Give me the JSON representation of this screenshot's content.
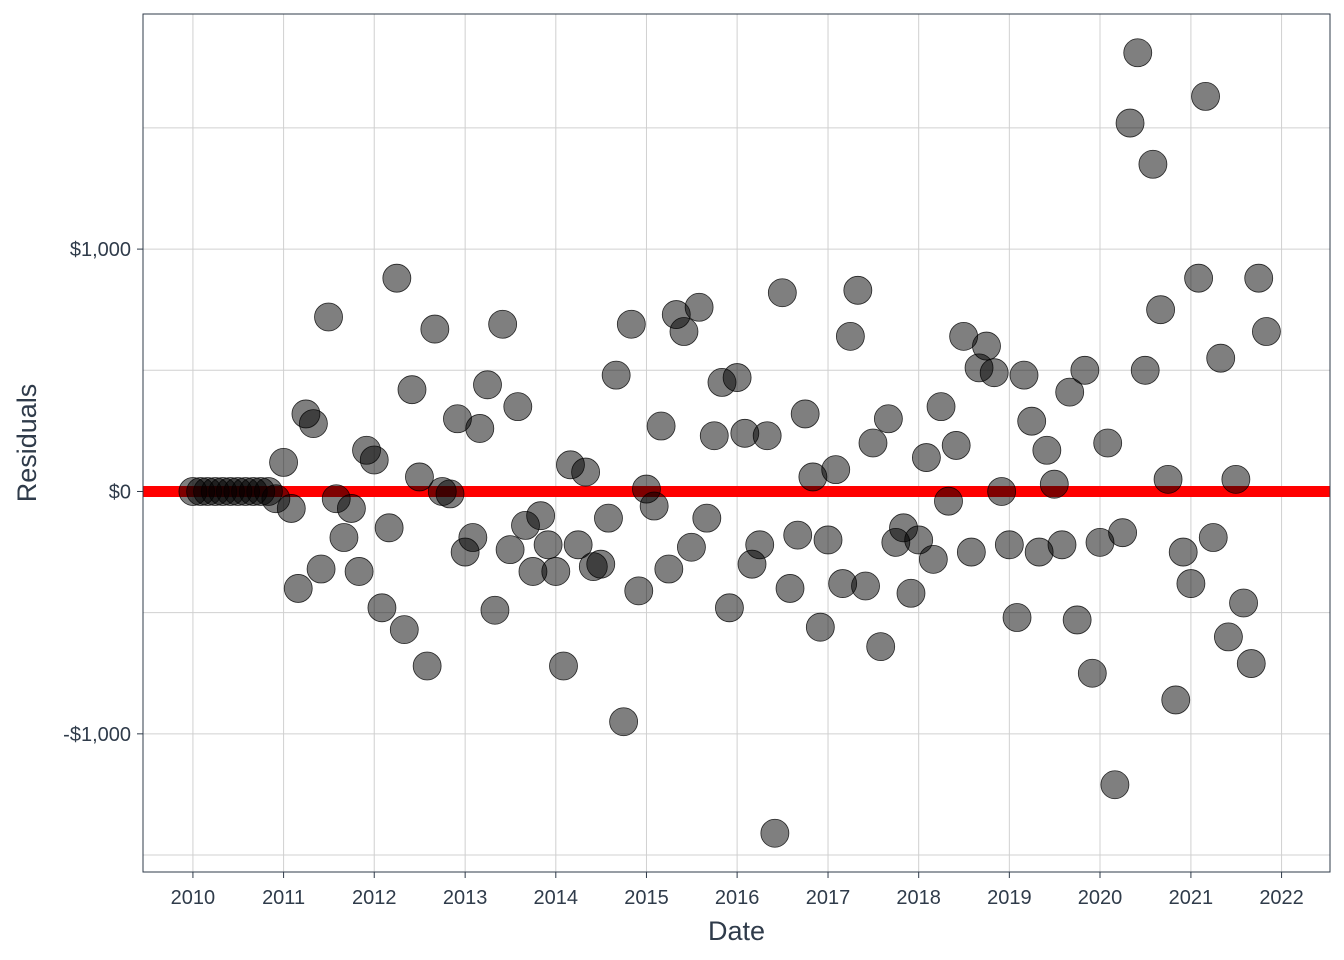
{
  "chart_data": {
    "type": "scatter",
    "xlabel": "Date",
    "ylabel": "Residuals",
    "xlim": [
      "2009-06-14",
      "2022-07-15"
    ],
    "ylim": [
      -1570,
      1970
    ],
    "x_ticks": [
      "2010",
      "2011",
      "2012",
      "2013",
      "2014",
      "2015",
      "2016",
      "2017",
      "2018",
      "2019",
      "2020",
      "2021",
      "2022"
    ],
    "y_ticks": [
      {
        "value": -1000,
        "label": "-$1,000"
      },
      {
        "value": 0,
        "label": "$0"
      },
      {
        "value": 1000,
        "label": "$1,000"
      }
    ],
    "y_minor_gridlines": [
      -1500,
      -500,
      500,
      1500
    ],
    "x_minor_gridlines": false,
    "grid": true,
    "reference_line": {
      "y": 0,
      "color": "#ff0000"
    },
    "point_color": "#000000",
    "point_opacity": 0.5,
    "points": [
      [
        "2010-01-01",
        0
      ],
      [
        "2010-02-01",
        0
      ],
      [
        "2010-03-01",
        0
      ],
      [
        "2010-04-01",
        0
      ],
      [
        "2010-05-01",
        0
      ],
      [
        "2010-06-01",
        0
      ],
      [
        "2010-07-01",
        0
      ],
      [
        "2010-08-01",
        0
      ],
      [
        "2010-09-01",
        0
      ],
      [
        "2010-10-01",
        0
      ],
      [
        "2010-11-01",
        0
      ],
      [
        "2010-12-01",
        -30
      ],
      [
        "2011-01-01",
        120
      ],
      [
        "2011-02-01",
        -70
      ],
      [
        "2011-03-01",
        -400
      ],
      [
        "2011-04-01",
        320
      ],
      [
        "2011-05-01",
        280
      ],
      [
        "2011-06-01",
        -320
      ],
      [
        "2011-07-01",
        720
      ],
      [
        "2011-08-01",
        -30
      ],
      [
        "2011-09-01",
        -190
      ],
      [
        "2011-10-01",
        -70
      ],
      [
        "2011-11-01",
        -330
      ],
      [
        "2011-12-01",
        170
      ],
      [
        "2012-01-01",
        130
      ],
      [
        "2012-02-01",
        -480
      ],
      [
        "2012-03-01",
        -150
      ],
      [
        "2012-04-01",
        880
      ],
      [
        "2012-05-01",
        -570
      ],
      [
        "2012-06-01",
        420
      ],
      [
        "2012-07-01",
        60
      ],
      [
        "2012-08-01",
        -720
      ],
      [
        "2012-09-01",
        670
      ],
      [
        "2012-10-01",
        0
      ],
      [
        "2012-11-01",
        -10
      ],
      [
        "2012-12-01",
        300
      ],
      [
        "2013-01-01",
        -250
      ],
      [
        "2013-02-01",
        -190
      ],
      [
        "2013-03-01",
        260
      ],
      [
        "2013-04-01",
        440
      ],
      [
        "2013-05-01",
        -490
      ],
      [
        "2013-06-01",
        690
      ],
      [
        "2013-07-01",
        -240
      ],
      [
        "2013-08-01",
        350
      ],
      [
        "2013-09-01",
        -140
      ],
      [
        "2013-10-01",
        -330
      ],
      [
        "2013-11-01",
        -100
      ],
      [
        "2013-12-01",
        -220
      ],
      [
        "2014-01-01",
        -330
      ],
      [
        "2014-02-01",
        -720
      ],
      [
        "2014-03-01",
        110
      ],
      [
        "2014-04-01",
        -220
      ],
      [
        "2014-05-01",
        80
      ],
      [
        "2014-06-01",
        -310
      ],
      [
        "2014-07-01",
        -300
      ],
      [
        "2014-08-01",
        -110
      ],
      [
        "2014-09-01",
        480
      ],
      [
        "2014-10-01",
        -950
      ],
      [
        "2014-11-01",
        690
      ],
      [
        "2014-12-01",
        -410
      ],
      [
        "2015-01-01",
        10
      ],
      [
        "2015-02-01",
        -60
      ],
      [
        "2015-03-01",
        270
      ],
      [
        "2015-04-01",
        -320
      ],
      [
        "2015-05-01",
        730
      ],
      [
        "2015-06-01",
        660
      ],
      [
        "2015-07-01",
        -230
      ],
      [
        "2015-08-01",
        760
      ],
      [
        "2015-09-01",
        -110
      ],
      [
        "2015-10-01",
        230
      ],
      [
        "2015-11-01",
        450
      ],
      [
        "2015-12-01",
        -480
      ],
      [
        "2016-01-01",
        470
      ],
      [
        "2016-02-01",
        240
      ],
      [
        "2016-03-01",
        -300
      ],
      [
        "2016-04-01",
        -220
      ],
      [
        "2016-05-01",
        230
      ],
      [
        "2016-06-01",
        -1410
      ],
      [
        "2016-07-01",
        820
      ],
      [
        "2016-08-01",
        -400
      ],
      [
        "2016-09-01",
        -180
      ],
      [
        "2016-10-01",
        320
      ],
      [
        "2016-11-01",
        60
      ],
      [
        "2016-12-01",
        -560
      ],
      [
        "2017-01-01",
        -200
      ],
      [
        "2017-02-01",
        90
      ],
      [
        "2017-03-01",
        -380
      ],
      [
        "2017-04-01",
        640
      ],
      [
        "2017-05-01",
        830
      ],
      [
        "2017-06-01",
        -390
      ],
      [
        "2017-07-01",
        200
      ],
      [
        "2017-08-01",
        -640
      ],
      [
        "2017-09-01",
        300
      ],
      [
        "2017-10-01",
        -210
      ],
      [
        "2017-11-01",
        -150
      ],
      [
        "2017-12-01",
        -420
      ],
      [
        "2018-01-01",
        -200
      ],
      [
        "2018-02-01",
        140
      ],
      [
        "2018-03-01",
        -280
      ],
      [
        "2018-04-01",
        350
      ],
      [
        "2018-05-01",
        -40
      ],
      [
        "2018-06-01",
        190
      ],
      [
        "2018-07-01",
        640
      ],
      [
        "2018-08-01",
        -250
      ],
      [
        "2018-09-01",
        510
      ],
      [
        "2018-10-01",
        600
      ],
      [
        "2018-11-01",
        490
      ],
      [
        "2018-12-01",
        0
      ],
      [
        "2019-01-01",
        -220
      ],
      [
        "2019-02-01",
        -520
      ],
      [
        "2019-03-01",
        480
      ],
      [
        "2019-04-01",
        290
      ],
      [
        "2019-05-01",
        -250
      ],
      [
        "2019-06-01",
        170
      ],
      [
        "2019-07-01",
        30
      ],
      [
        "2019-08-01",
        -220
      ],
      [
        "2019-09-01",
        410
      ],
      [
        "2019-10-01",
        -530
      ],
      [
        "2019-11-01",
        500
      ],
      [
        "2019-12-01",
        -750
      ],
      [
        "2020-01-01",
        -210
      ],
      [
        "2020-02-01",
        200
      ],
      [
        "2020-03-01",
        -1210
      ],
      [
        "2020-04-01",
        -170
      ],
      [
        "2020-05-01",
        1520
      ],
      [
        "2020-06-01",
        1810
      ],
      [
        "2020-07-01",
        500
      ],
      [
        "2020-08-01",
        1350
      ],
      [
        "2020-09-01",
        750
      ],
      [
        "2020-10-01",
        50
      ],
      [
        "2020-11-01",
        -860
      ],
      [
        "2020-12-01",
        -250
      ],
      [
        "2021-01-01",
        -380
      ],
      [
        "2021-02-01",
        880
      ],
      [
        "2021-03-01",
        1630
      ],
      [
        "2021-04-01",
        -190
      ],
      [
        "2021-05-01",
        550
      ],
      [
        "2021-06-01",
        -600
      ],
      [
        "2021-07-01",
        50
      ],
      [
        "2021-08-01",
        -460
      ],
      [
        "2021-09-01",
        -710
      ],
      [
        "2021-10-01",
        880
      ],
      [
        "2021-11-01",
        660
      ]
    ]
  }
}
